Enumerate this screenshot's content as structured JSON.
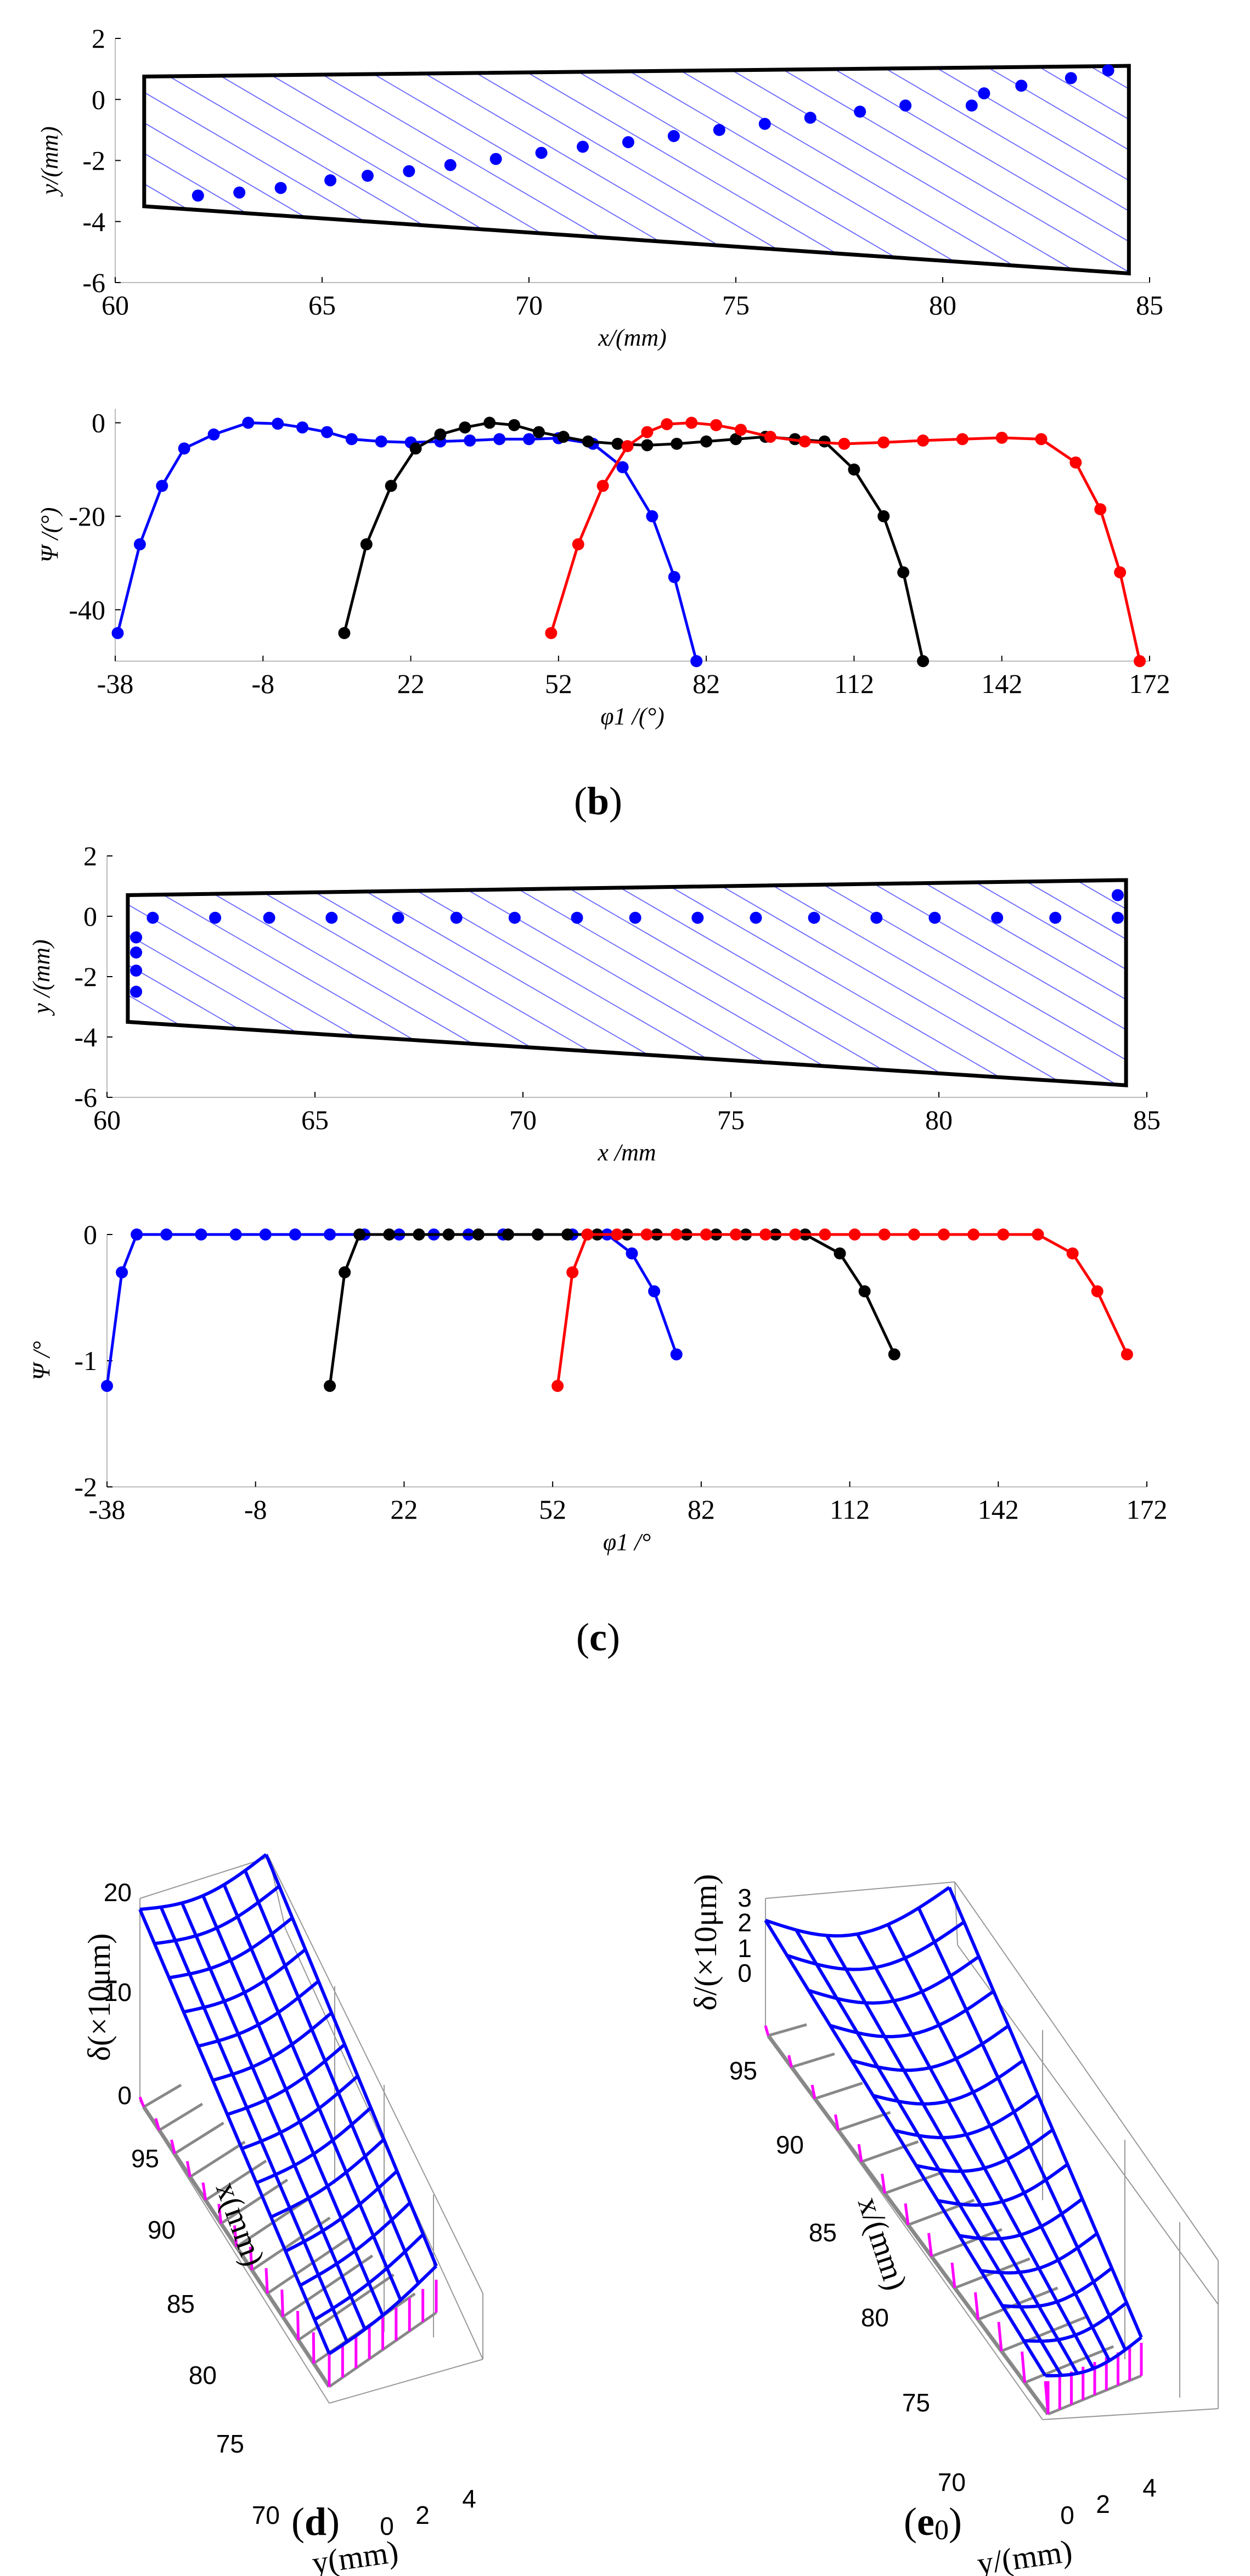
{
  "chart_data": [
    {
      "id": "xy-upper",
      "type": "scatter",
      "xlabel": "x/(mm)",
      "ylabel": "y/(mm)",
      "xlim": [
        60,
        85
      ],
      "ylim": [
        -6,
        2
      ],
      "xticks": [
        "60",
        "65",
        "70",
        "75",
        "80",
        "85"
      ],
      "yticks": [
        "2",
        "0",
        "-2",
        "-4",
        "-6"
      ],
      "outline": [
        [
          60.7,
          0.75
        ],
        [
          84.5,
          1.1
        ],
        [
          84.5,
          -5.7
        ],
        [
          60.7,
          -3.5
        ]
      ],
      "points": [
        [
          62,
          -3.15
        ],
        [
          63,
          -3.05
        ],
        [
          64,
          -2.9
        ],
        [
          65.2,
          -2.65
        ],
        [
          66.1,
          -2.5
        ],
        [
          67.1,
          -2.35
        ],
        [
          68.1,
          -2.15
        ],
        [
          69.2,
          -1.95
        ],
        [
          70.3,
          -1.75
        ],
        [
          71.3,
          -1.55
        ],
        [
          72.4,
          -1.4
        ],
        [
          73.5,
          -1.2
        ],
        [
          74.6,
          -1.0
        ],
        [
          75.7,
          -0.8
        ],
        [
          76.8,
          -0.6
        ],
        [
          78.0,
          -0.4
        ],
        [
          79.1,
          -0.2
        ],
        [
          80.7,
          -0.2
        ],
        [
          81.0,
          0.2
        ],
        [
          81.9,
          0.45
        ],
        [
          83.1,
          0.7
        ],
        [
          84.0,
          0.95
        ]
      ]
    },
    {
      "id": "psi-upper",
      "type": "line",
      "xlabel": "φ1 /(°)",
      "ylabel": "Ψ /(°)",
      "xlim": [
        -38,
        172
      ],
      "ylim": [
        -51,
        3
      ],
      "xticks": [
        "-38",
        "-8",
        "22",
        "52",
        "82",
        "112",
        "142",
        "172"
      ],
      "yticks": [
        "0",
        "-20",
        "-40"
      ],
      "series": [
        {
          "name": "blue",
          "color": "#0000ff",
          "points": [
            [
              -37.5,
              -45
            ],
            [
              -33,
              -26
            ],
            [
              -28.5,
              -13.5
            ],
            [
              -24,
              -5.5
            ],
            [
              -18,
              -2.5
            ],
            [
              -11,
              0
            ],
            [
              -5,
              -0.2
            ],
            [
              0,
              -1
            ],
            [
              5,
              -2
            ],
            [
              10,
              -3.5
            ],
            [
              16,
              -4
            ],
            [
              22,
              -4.2
            ],
            [
              28,
              -4
            ],
            [
              34,
              -3.8
            ],
            [
              40,
              -3.5
            ],
            [
              46,
              -3.5
            ],
            [
              52,
              -3.3
            ],
            [
              59,
              -4.5
            ],
            [
              65,
              -9.5
            ],
            [
              71,
              -20
            ],
            [
              75.5,
              -33
            ],
            [
              80,
              -51
            ]
          ]
        },
        {
          "name": "black",
          "color": "#000000",
          "points": [
            [
              8.5,
              -45
            ],
            [
              13,
              -26
            ],
            [
              18,
              -13.5
            ],
            [
              23,
              -5.5
            ],
            [
              28,
              -2.5
            ],
            [
              33,
              -1
            ],
            [
              38,
              0
            ],
            [
              43,
              -0.5
            ],
            [
              48,
              -2
            ],
            [
              53,
              -3
            ],
            [
              58,
              -4
            ],
            [
              64,
              -4.5
            ],
            [
              70,
              -4.8
            ],
            [
              76,
              -4.5
            ],
            [
              82,
              -4
            ],
            [
              88,
              -3.5
            ],
            [
              94,
              -3
            ],
            [
              100,
              -3.5
            ],
            [
              106,
              -4
            ],
            [
              112,
              -10
            ],
            [
              118,
              -20
            ],
            [
              122,
              -32
            ],
            [
              126,
              -51
            ]
          ]
        },
        {
          "name": "red",
          "color": "#ff0000",
          "points": [
            [
              50.5,
              -45
            ],
            [
              56,
              -26
            ],
            [
              61,
              -13.5
            ],
            [
              66,
              -5
            ],
            [
              70,
              -2
            ],
            [
              74,
              -0.3
            ],
            [
              79,
              0
            ],
            [
              84,
              -0.5
            ],
            [
              89,
              -1.5
            ],
            [
              95,
              -3
            ],
            [
              102,
              -4
            ],
            [
              110,
              -4.5
            ],
            [
              118,
              -4.2
            ],
            [
              126,
              -3.8
            ],
            [
              134,
              -3.5
            ],
            [
              142,
              -3.2
            ],
            [
              150,
              -3.5
            ],
            [
              157,
              -8.5
            ],
            [
              162,
              -18.5
            ],
            [
              166,
              -32
            ],
            [
              170,
              -51
            ]
          ]
        }
      ]
    },
    {
      "id": "xy-lower",
      "type": "scatter",
      "xlabel": "x /mm",
      "ylabel": "y /(mm)",
      "xlim": [
        60,
        85
      ],
      "ylim": [
        -6,
        2
      ],
      "xticks": [
        "60",
        "65",
        "70",
        "75",
        "80",
        "85"
      ],
      "yticks": [
        "2",
        "0",
        "-2",
        "-4",
        "-6"
      ],
      "outline": [
        [
          60.5,
          0.7
        ],
        [
          84.5,
          1.2
        ],
        [
          84.5,
          -5.6
        ],
        [
          60.5,
          -3.5
        ]
      ],
      "points": [
        [
          60.7,
          -0.7
        ],
        [
          60.7,
          -1.2
        ],
        [
          60.7,
          -1.8
        ],
        [
          60.7,
          -2.5
        ],
        [
          61.1,
          -0.05
        ],
        [
          62.6,
          -0.05
        ],
        [
          63.9,
          -0.05
        ],
        [
          65.4,
          -0.05
        ],
        [
          67.0,
          -0.05
        ],
        [
          68.4,
          -0.05
        ],
        [
          69.8,
          -0.05
        ],
        [
          71.3,
          -0.05
        ],
        [
          72.7,
          -0.05
        ],
        [
          74.2,
          -0.05
        ],
        [
          75.6,
          -0.05
        ],
        [
          77.0,
          -0.05
        ],
        [
          78.5,
          -0.05
        ],
        [
          79.9,
          -0.05
        ],
        [
          81.4,
          -0.05
        ],
        [
          82.8,
          -0.05
        ],
        [
          84.3,
          -0.05
        ],
        [
          84.3,
          0.7
        ]
      ]
    },
    {
      "id": "psi-lower",
      "type": "line",
      "xlabel": "φ1 /°",
      "ylabel": "Ψ /°",
      "xlim": [
        -38,
        172
      ],
      "ylim": [
        -2,
        0
      ],
      "xticks": [
        "-38",
        "-8",
        "22",
        "52",
        "82",
        "112",
        "142",
        "172"
      ],
      "yticks": [
        "0",
        "-1",
        "-2"
      ],
      "series": [
        {
          "name": "blue",
          "color": "#0000ff",
          "points": [
            [
              -38,
              -1.2
            ],
            [
              -35,
              -0.3
            ],
            [
              -32,
              0
            ],
            [
              -26,
              0
            ],
            [
              -19,
              0
            ],
            [
              -12,
              0
            ],
            [
              -6,
              0
            ],
            [
              0,
              0
            ],
            [
              7,
              0
            ],
            [
              14,
              0
            ],
            [
              21,
              0
            ],
            [
              28,
              0
            ],
            [
              35,
              0
            ],
            [
              42,
              0
            ],
            [
              49,
              0
            ],
            [
              56,
              0
            ],
            [
              63,
              0
            ],
            [
              68,
              -0.15
            ],
            [
              72.5,
              -0.45
            ],
            [
              77,
              -0.95
            ]
          ]
        },
        {
          "name": "black",
          "color": "#000000",
          "points": [
            [
              7,
              -1.2
            ],
            [
              10,
              -0.3
            ],
            [
              13,
              0
            ],
            [
              19,
              0
            ],
            [
              25,
              0
            ],
            [
              31,
              0
            ],
            [
              37,
              0
            ],
            [
              43,
              0
            ],
            [
              49,
              0
            ],
            [
              55,
              0
            ],
            [
              61,
              0
            ],
            [
              67,
              0
            ],
            [
              73,
              0
            ],
            [
              79,
              0
            ],
            [
              85,
              0
            ],
            [
              91,
              0
            ],
            [
              97,
              0
            ],
            [
              103,
              0
            ],
            [
              110,
              -0.15
            ],
            [
              115,
              -0.45
            ],
            [
              121,
              -0.95
            ]
          ]
        },
        {
          "name": "red",
          "color": "#ff0000",
          "points": [
            [
              53,
              -1.2
            ],
            [
              56,
              -0.3
            ],
            [
              59,
              0
            ],
            [
              65,
              0
            ],
            [
              71,
              0
            ],
            [
              77,
              0
            ],
            [
              83,
              0
            ],
            [
              89,
              0
            ],
            [
              95,
              0
            ],
            [
              101,
              0
            ],
            [
              107,
              0
            ],
            [
              113,
              0
            ],
            [
              119,
              0
            ],
            [
              125,
              0
            ],
            [
              131,
              0
            ],
            [
              137,
              0
            ],
            [
              143,
              0
            ],
            [
              150,
              0
            ],
            [
              157,
              -0.15
            ],
            [
              162,
              -0.45
            ],
            [
              168,
              -0.95
            ]
          ]
        }
      ]
    },
    {
      "id": "surface-d",
      "type": "surface",
      "zlabel": "δ(×10μm)",
      "xlabel": "x(mm)",
      "ylabel": "y(mm)",
      "zticks": [
        "20",
        "10",
        "0"
      ],
      "xticks": [
        "95",
        "90",
        "85",
        "80",
        "75",
        "70"
      ],
      "yticks": [
        "0",
        "2",
        "4"
      ],
      "color": "#0000ff"
    },
    {
      "id": "surface-e",
      "type": "surface",
      "zlabel": "δ/(×10μm)",
      "xlabel": "x/(mm)",
      "ylabel": "y/(mm)",
      "zticks": [
        "3",
        "2",
        "1",
        "0"
      ],
      "xticks": [
        "95",
        "90",
        "85",
        "80",
        "75",
        "70"
      ],
      "yticks": [
        "0",
        "2",
        "4"
      ],
      "color": "#0000ff"
    }
  ],
  "panels": {
    "b": {
      "letter": "b",
      "open": "(",
      "close": ")"
    },
    "c": {
      "letter": "c",
      "open": "(",
      "close": ")"
    },
    "d": {
      "letter": "d",
      "open": "(",
      "close": ")"
    },
    "e": {
      "letter": "e",
      "sub": "0",
      "open": "(",
      "close": ")"
    }
  }
}
